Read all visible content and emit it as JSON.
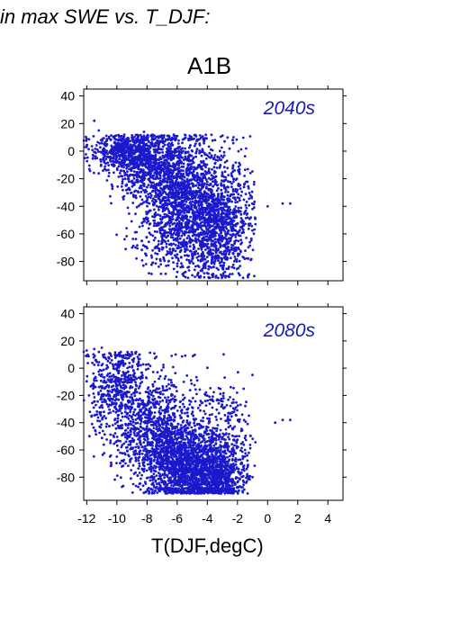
{
  "page_title": "in max SWE vs. T_DJF:",
  "scenario": "A1B",
  "xlabel": "T(DJF,degC)",
  "colors": {
    "points": "#1a1acc",
    "annotation": "#1a1ab0",
    "frame": "#000000"
  },
  "chart_data": [
    {
      "type": "scatter",
      "annotation": "2040s",
      "xlim": [
        -12.2,
        5.0
      ],
      "ylim": [
        -94,
        45
      ],
      "x_ticks": [
        -12,
        -10,
        -8,
        -6,
        -4,
        -2,
        0,
        2,
        4
      ],
      "y_ticks": [
        40,
        20,
        0,
        -20,
        -40,
        -60,
        -80
      ],
      "x_tick_labels_shown": false,
      "y_tick_labels": [
        "40",
        "20",
        "0",
        "-20",
        "-40",
        "-60",
        "-80"
      ],
      "clusters": [
        {
          "x": -9.5,
          "y": 0,
          "sx": 1.2,
          "sy": 7,
          "n": 500
        },
        {
          "x": -7.5,
          "y": -10,
          "sx": 1.5,
          "sy": 14,
          "n": 800
        },
        {
          "x": -5.5,
          "y": -35,
          "sx": 1.4,
          "sy": 22,
          "n": 1200
        },
        {
          "x": -3.5,
          "y": -60,
          "sx": 1.0,
          "sy": 18,
          "n": 700
        },
        {
          "x": -2.5,
          "y": -40,
          "sx": 0.9,
          "sy": 25,
          "n": 300
        },
        {
          "x": -7.0,
          "y": -65,
          "sx": 1.0,
          "sy": 10,
          "n": 150
        }
      ],
      "points": [
        [
          -11.5,
          22
        ],
        [
          -11.2,
          15
        ],
        [
          -12.0,
          9
        ],
        [
          -8.2,
          14
        ],
        [
          -1.0,
          -42
        ],
        [
          0.0,
          -40
        ],
        [
          1.0,
          -38
        ],
        [
          1.5,
          -38
        ],
        [
          -5.0,
          -90
        ],
        [
          -3.0,
          -85
        ]
      ]
    },
    {
      "type": "scatter",
      "annotation": "2080s",
      "xlim": [
        -12.2,
        5.0
      ],
      "ylim": [
        -97,
        45
      ],
      "x_ticks": [
        -12,
        -10,
        -8,
        -6,
        -4,
        -2,
        0,
        2,
        4
      ],
      "y_ticks": [
        40,
        20,
        0,
        -20,
        -40,
        -60,
        -80
      ],
      "x_tick_labels": [
        "-12",
        "-10",
        "-8",
        "-6",
        "-4",
        "-2",
        "0",
        "2",
        "4"
      ],
      "y_tick_labels": [
        "40",
        "20",
        "0",
        "-20",
        "-40",
        "-60",
        "-80"
      ],
      "clusters": [
        {
          "x": -10.0,
          "y": -15,
          "sx": 1.0,
          "sy": 18,
          "n": 500
        },
        {
          "x": -7.5,
          "y": -45,
          "sx": 1.3,
          "sy": 22,
          "n": 900
        },
        {
          "x": -5.5,
          "y": -70,
          "sx": 1.2,
          "sy": 15,
          "n": 1300
        },
        {
          "x": -3.5,
          "y": -80,
          "sx": 0.9,
          "sy": 10,
          "n": 700
        },
        {
          "x": -3.0,
          "y": -50,
          "sx": 1.0,
          "sy": 20,
          "n": 300
        }
      ],
      "points": [
        [
          -12.0,
          13
        ],
        [
          -11.5,
          14
        ],
        [
          -11.0,
          15
        ],
        [
          -12.2,
          12
        ],
        [
          -1.0,
          -5
        ],
        [
          0.5,
          -40
        ],
        [
          1.0,
          -38
        ],
        [
          1.5,
          -38
        ],
        [
          -1.5,
          -60
        ]
      ]
    }
  ]
}
